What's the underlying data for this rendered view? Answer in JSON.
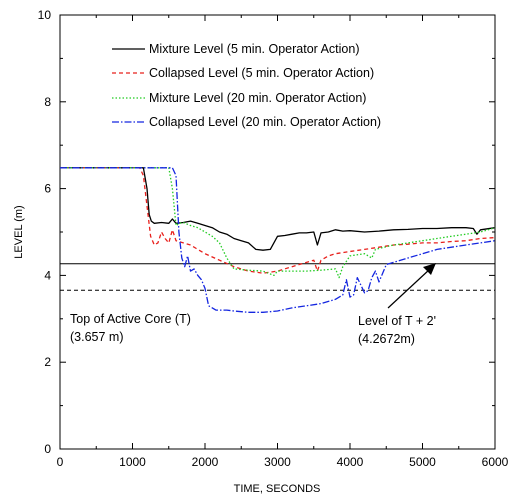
{
  "chart_data": {
    "type": "line",
    "title": "",
    "xlabel": "TIME, SECONDS",
    "ylabel": "LEVEL (m)",
    "xlim": [
      0,
      6000
    ],
    "ylim": [
      0,
      10
    ],
    "xticks": [
      0,
      1000,
      2000,
      3000,
      4000,
      5000,
      6000
    ],
    "yticks": [
      0,
      2,
      4,
      6,
      8,
      10
    ],
    "xtick_labels": [
      "0",
      "1000",
      "2000",
      "3000",
      "4000",
      "5000",
      "6000"
    ],
    "ytick_labels": [
      "0",
      "2",
      "4",
      "6",
      "8",
      "10"
    ],
    "grid": false,
    "legend_position": "top-center",
    "series": [
      {
        "name": "Mixture Level (5 min. Operator Action)",
        "color": "#000000",
        "dash": "solid",
        "x": [
          0,
          1150,
          1200,
          1230,
          1260,
          1300,
          1400,
          1500,
          1550,
          1600,
          1700,
          1800,
          1900,
          2000,
          2100,
          2200,
          2300,
          2400,
          2500,
          2600,
          2700,
          2800,
          2900,
          3000,
          3100,
          3200,
          3300,
          3400,
          3500,
          3550,
          3600,
          3700,
          3800,
          3900,
          4000,
          4200,
          4400,
          4600,
          4800,
          5000,
          5200,
          5400,
          5600,
          5700,
          5750,
          5800,
          6000
        ],
        "y": [
          6.48,
          6.48,
          6.0,
          5.4,
          5.25,
          5.2,
          5.22,
          5.2,
          5.3,
          5.2,
          5.22,
          5.25,
          5.2,
          5.15,
          5.1,
          5.0,
          4.95,
          4.85,
          4.8,
          4.75,
          4.6,
          4.58,
          4.6,
          4.9,
          4.92,
          4.95,
          4.98,
          4.98,
          5.0,
          4.7,
          4.98,
          5.0,
          5.05,
          5.02,
          5.03,
          5.0,
          5.02,
          5.05,
          5.06,
          5.08,
          5.08,
          5.1,
          5.1,
          5.08,
          4.95,
          5.05,
          5.1
        ]
      },
      {
        "name": "Collapsed Level (5 min. Operator Action)",
        "color": "#e8201c",
        "dash": "dashed",
        "x": [
          0,
          1100,
          1150,
          1200,
          1250,
          1300,
          1350,
          1400,
          1450,
          1500,
          1550,
          1600,
          1700,
          1800,
          1900,
          2000,
          2200,
          2400,
          2600,
          2800,
          3000,
          3200,
          3400,
          3500,
          3550,
          3600,
          3700,
          3800,
          4000,
          4200,
          4400,
          4600,
          4800,
          5000,
          5200,
          5400,
          5600,
          5800,
          6000
        ],
        "y": [
          6.48,
          6.48,
          6.3,
          5.6,
          4.9,
          4.7,
          4.75,
          5.0,
          4.85,
          4.75,
          5.05,
          4.8,
          4.75,
          4.7,
          4.6,
          4.5,
          4.35,
          4.2,
          4.1,
          4.05,
          4.1,
          4.2,
          4.3,
          4.35,
          4.1,
          4.35,
          4.45,
          4.5,
          4.55,
          4.6,
          4.65,
          4.7,
          4.72,
          4.75,
          4.75,
          4.78,
          4.8,
          4.85,
          4.87
        ]
      },
      {
        "name": "Mixture Level (20 min. Operator Action)",
        "color": "#22cc22",
        "dash": "dotted",
        "x": [
          0,
          1500,
          1550,
          1600,
          1650,
          1700,
          1800,
          1900,
          2000,
          2100,
          2200,
          2300,
          2400,
          2600,
          2800,
          2950,
          3000,
          3200,
          3400,
          3600,
          3800,
          3850,
          3900,
          4000,
          4200,
          4300,
          4350,
          4400,
          4600,
          4800,
          5000,
          5200,
          5400,
          5600,
          5800,
          6000
        ],
        "y": [
          6.48,
          6.48,
          6.0,
          5.15,
          5.2,
          5.22,
          5.15,
          5.1,
          5.0,
          4.9,
          4.75,
          4.4,
          4.15,
          4.12,
          4.1,
          4.0,
          4.1,
          4.1,
          4.1,
          4.12,
          4.15,
          3.95,
          4.2,
          4.45,
          4.5,
          4.4,
          4.6,
          4.62,
          4.7,
          4.75,
          4.8,
          4.85,
          4.9,
          4.95,
          5.0,
          5.1
        ]
      },
      {
        "name": "Collapsed Level (20 min. Operator Action)",
        "color": "#1426e0",
        "dash": "dashdot",
        "x": [
          0,
          1550,
          1600,
          1640,
          1680,
          1720,
          1760,
          1800,
          1850,
          1900,
          1950,
          2000,
          2050,
          2100,
          2150,
          2200,
          2300,
          2400,
          2600,
          2800,
          3000,
          3200,
          3400,
          3600,
          3800,
          3900,
          3950,
          4000,
          4050,
          4100,
          4200,
          4250,
          4300,
          4350,
          4400,
          4500,
          4600,
          4800,
          5000,
          5200,
          5400,
          5600,
          5800,
          6000
        ],
        "y": [
          6.48,
          6.48,
          6.3,
          5.0,
          4.4,
          4.2,
          4.45,
          4.1,
          4.15,
          4.0,
          3.9,
          3.7,
          3.3,
          3.25,
          3.2,
          3.2,
          3.2,
          3.18,
          3.15,
          3.15,
          3.18,
          3.25,
          3.3,
          3.35,
          3.45,
          3.55,
          3.9,
          3.5,
          3.55,
          3.95,
          3.6,
          3.65,
          3.95,
          4.1,
          3.85,
          4.25,
          4.3,
          4.4,
          4.5,
          4.6,
          4.65,
          4.7,
          4.75,
          4.8
        ]
      }
    ],
    "reference_lines": [
      {
        "y": 4.2672,
        "style": "solid",
        "color": "#000000"
      },
      {
        "y": 3.657,
        "style": "dashed",
        "color": "#000000"
      }
    ],
    "annotations": [
      {
        "text_lines": [
          "Top of Active Core (T)",
          "(3.657 m)"
        ]
      },
      {
        "text_lines": [
          "Level of T + 2'",
          "(4.2672m)"
        ],
        "arrow_to": {
          "x": 4750,
          "y": 4.27
        }
      }
    ]
  }
}
